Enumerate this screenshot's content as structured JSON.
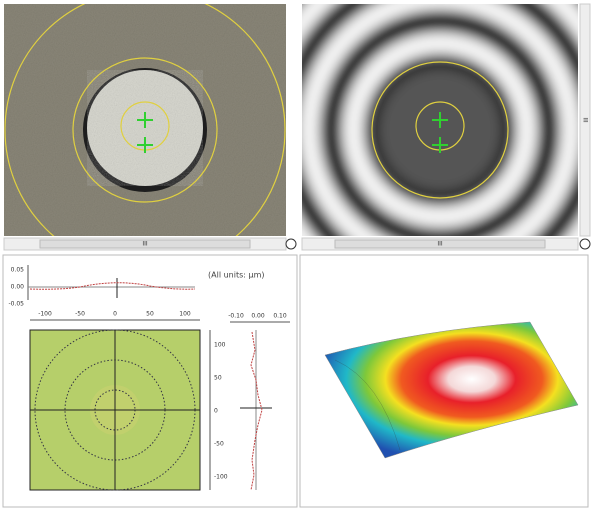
{
  "units_note": "(All units: µm)",
  "top_profile_ticks": [
    "0.05",
    "0.00",
    "-0.05"
  ],
  "map_x_ticks": [
    "-100",
    "-50",
    "0",
    "50",
    "100"
  ],
  "map_y_ticks": [
    "100",
    "50",
    "0",
    "-50",
    "-100"
  ],
  "side_profile_ticks": [
    "-0.10",
    "0.00",
    "0.10"
  ],
  "scroll_labels": [
    "III",
    "III",
    "III"
  ]
}
